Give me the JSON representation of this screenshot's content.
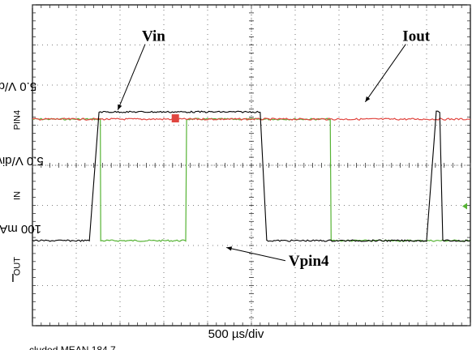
{
  "chart_data": {
    "type": "line",
    "title": "",
    "xlabel": "500 µs/div",
    "ylabel_parts": [
      "I",
      "OUT",
      " 100 mA, V",
      "IN",
      " 5.0 V/div, V",
      "PIN4",
      " 5.0 V/div"
    ],
    "x_divisions": 10,
    "y_divisions": 8,
    "grid": true,
    "bottom_text_partial": "cluded   MEAN 184.7 ...",
    "annotations": [
      {
        "text": "Vin"
      },
      {
        "text": "Iout"
      },
      {
        "text": "Vpin4"
      }
    ],
    "series": [
      {
        "name": "Iout",
        "color": "#000000",
        "x": [
          0,
          1.3,
          1.52,
          5.2,
          5.35,
          9.0,
          9.22,
          9.3,
          9.37,
          10.0
        ],
        "y": [
          2.12,
          2.12,
          5.33,
          5.33,
          2.12,
          2.12,
          5.33,
          5.33,
          2.12,
          2.12
        ],
        "note_x_units": "divisions"
      },
      {
        "name": "Vin",
        "color": "#e0453f",
        "x": [
          0,
          10
        ],
        "y": [
          5.15,
          5.15
        ]
      },
      {
        "name": "Vpin4",
        "color": "#56b334",
        "x": [
          0,
          1.55,
          1.56,
          3.5,
          3.52,
          6.8,
          6.82,
          10.0
        ],
        "y": [
          5.15,
          5.15,
          2.12,
          2.12,
          5.15,
          5.15,
          2.12,
          2.12
        ]
      }
    ]
  }
}
